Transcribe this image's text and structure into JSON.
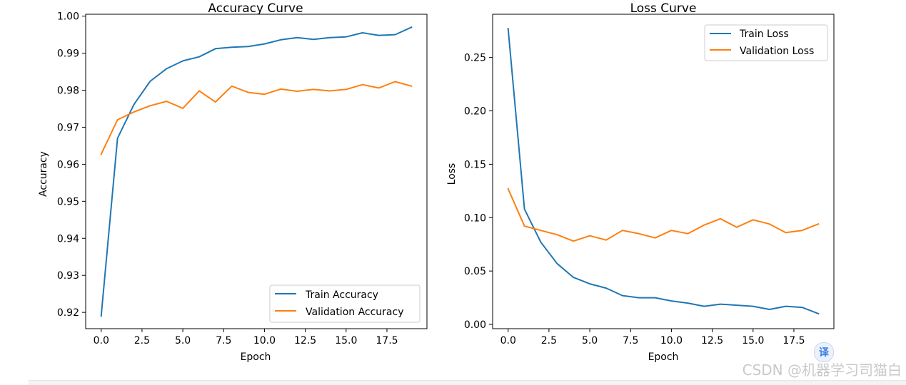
{
  "watermark": "CSDN @机器学习司猫白",
  "translate_button": "译",
  "colors": {
    "train": "#1f77b4",
    "validation": "#ff7f0e"
  },
  "chart_data": [
    {
      "type": "line",
      "title": "Accuracy Curve",
      "xlabel": "Epoch",
      "ylabel": "Accuracy",
      "xlim": [
        -0.95,
        19.95
      ],
      "ylim": [
        0.9156,
        1.0005
      ],
      "xticks": [
        0.0,
        2.5,
        5.0,
        7.5,
        10.0,
        12.5,
        15.0,
        17.5
      ],
      "xtick_labels": [
        "0.0",
        "2.5",
        "5.0",
        "7.5",
        "10.0",
        "12.5",
        "15.0",
        "17.5"
      ],
      "yticks": [
        0.92,
        0.93,
        0.94,
        0.95,
        0.96,
        0.97,
        0.98,
        0.99,
        1.0
      ],
      "ytick_labels": [
        "0.92",
        "0.93",
        "0.94",
        "0.95",
        "0.96",
        "0.97",
        "0.98",
        "0.99",
        "1.00"
      ],
      "legend_position": "lower right",
      "x": [
        0,
        1,
        2,
        3,
        4,
        5,
        6,
        7,
        8,
        9,
        10,
        11,
        12,
        13,
        14,
        15,
        16,
        17,
        18,
        19
      ],
      "series": [
        {
          "name": "Train Accuracy",
          "color": "#1f77b4",
          "values": [
            0.919,
            0.967,
            0.9761,
            0.9824,
            0.9858,
            0.9879,
            0.989,
            0.9912,
            0.9916,
            0.9918,
            0.9925,
            0.9936,
            0.9942,
            0.9937,
            0.9942,
            0.9944,
            0.9955,
            0.9948,
            0.995,
            0.997
          ]
        },
        {
          "name": "Validation Accuracy",
          "color": "#ff7f0e",
          "values": [
            0.9627,
            0.972,
            0.9741,
            0.9758,
            0.977,
            0.9751,
            0.9798,
            0.9768,
            0.9811,
            0.9794,
            0.9789,
            0.9803,
            0.9797,
            0.9802,
            0.9798,
            0.9802,
            0.9815,
            0.9806,
            0.9823,
            0.9811
          ]
        }
      ]
    },
    {
      "type": "line",
      "title": "Loss Curve",
      "xlabel": "Epoch",
      "ylabel": "Loss",
      "xlim": [
        -0.95,
        19.95
      ],
      "ylim": [
        -0.004,
        0.2905
      ],
      "xticks": [
        0.0,
        2.5,
        5.0,
        7.5,
        10.0,
        12.5,
        15.0,
        17.5
      ],
      "xtick_labels": [
        "0.0",
        "2.5",
        "5.0",
        "7.5",
        "10.0",
        "12.5",
        "15.0",
        "17.5"
      ],
      "yticks": [
        0.0,
        0.05,
        0.1,
        0.15,
        0.2,
        0.25
      ],
      "ytick_labels": [
        "0.00",
        "0.05",
        "0.10",
        "0.15",
        "0.20",
        "0.25"
      ],
      "legend_position": "upper right",
      "x": [
        0,
        1,
        2,
        3,
        4,
        5,
        6,
        7,
        8,
        9,
        10,
        11,
        12,
        13,
        14,
        15,
        16,
        17,
        18,
        19
      ],
      "series": [
        {
          "name": "Train Loss",
          "color": "#1f77b4",
          "values": [
            0.277,
            0.108,
            0.077,
            0.057,
            0.044,
            0.038,
            0.034,
            0.027,
            0.025,
            0.025,
            0.022,
            0.02,
            0.017,
            0.019,
            0.018,
            0.017,
            0.014,
            0.017,
            0.016,
            0.01
          ]
        },
        {
          "name": "Validation Loss",
          "color": "#ff7f0e",
          "values": [
            0.127,
            0.092,
            0.088,
            0.084,
            0.078,
            0.083,
            0.079,
            0.088,
            0.085,
            0.081,
            0.088,
            0.085,
            0.093,
            0.099,
            0.091,
            0.098,
            0.094,
            0.086,
            0.088,
            0.094
          ]
        }
      ]
    }
  ]
}
